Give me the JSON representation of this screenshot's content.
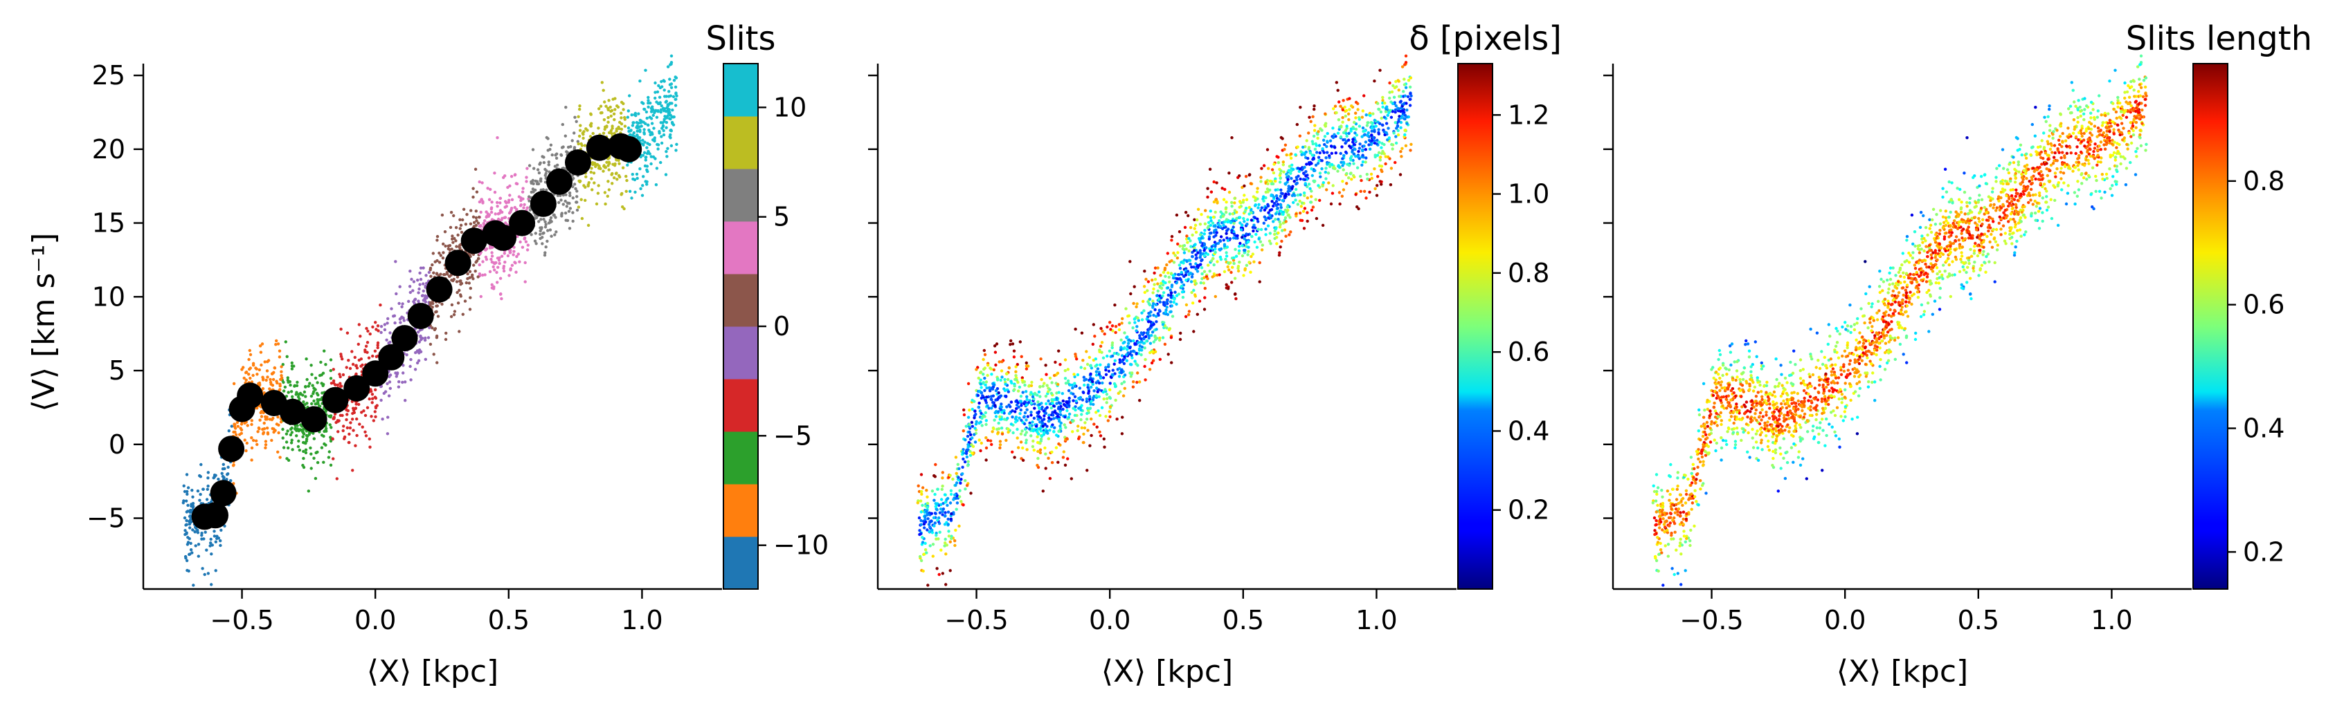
{
  "chart_data": [
    {
      "type": "scatter",
      "xlabel": "⟨X⟩ [kpc]",
      "ylabel": "⟨V⟩ [km s⁻¹]",
      "xlim": [
        -0.87,
        1.3
      ],
      "ylim": [
        -9.8,
        25.8
      ],
      "xticks": [
        -0.5,
        0.0,
        0.5,
        1.0
      ],
      "xtick_labels": [
        "−0.5",
        "0.0",
        "0.5",
        "1.0"
      ],
      "yticks": [
        -5,
        0,
        5,
        10,
        15,
        20,
        25
      ],
      "ytick_labels": [
        "−5",
        "0",
        "5",
        "10",
        "15",
        "20",
        "25"
      ],
      "colorbar": {
        "title": "Slits",
        "range": [
          -12,
          12
        ],
        "ticks": [
          -10,
          -5,
          0,
          5,
          10
        ],
        "tick_labels": [
          "−10",
          "−5",
          "0",
          "5",
          "10"
        ],
        "colors": [
          "#1f77b4",
          "#ff7f0e",
          "#2ca02c",
          "#d62728",
          "#9467bd",
          "#8c564b",
          "#e377c2",
          "#7f7f7f",
          "#bcbd22",
          "#17becf"
        ]
      },
      "mean_points": {
        "color": "#000000",
        "x": [
          -0.64,
          -0.6,
          -0.57,
          -0.54,
          -0.5,
          -0.47,
          -0.38,
          -0.31,
          -0.23,
          -0.15,
          -0.07,
          0.0,
          0.06,
          0.11,
          0.17,
          0.24,
          0.31,
          0.37,
          0.45,
          0.48,
          0.55,
          0.63,
          0.69,
          0.76,
          0.84,
          0.92,
          0.95
        ],
        "y": [
          -4.9,
          -4.8,
          -3.3,
          -0.3,
          2.4,
          3.3,
          2.8,
          2.2,
          1.7,
          3.0,
          3.8,
          4.8,
          5.9,
          7.2,
          8.7,
          10.5,
          12.3,
          13.8,
          14.3,
          14.0,
          15.0,
          16.3,
          17.8,
          19.1,
          20.1,
          20.2,
          20.0
        ]
      }
    },
    {
      "type": "scatter",
      "xlabel": "⟨X⟩ [kpc]",
      "xlim": [
        -0.87,
        1.3
      ],
      "ylim": [
        -9.8,
        25.8
      ],
      "xticks": [
        -0.5,
        0.0,
        0.5,
        1.0
      ],
      "xtick_labels": [
        "−0.5",
        "0.0",
        "0.5",
        "1.0"
      ],
      "colorbar": {
        "title": "δ [pixels]",
        "range": [
          0.0,
          1.33
        ],
        "ticks": [
          0.2,
          0.4,
          0.6,
          0.8,
          1.0,
          1.2
        ],
        "tick_labels": [
          "0.2",
          "0.4",
          "0.6",
          "0.8",
          "1.0",
          "1.2"
        ],
        "colormap": "jet"
      }
    },
    {
      "type": "scatter",
      "xlabel": "⟨X⟩ [kpc]",
      "xlim": [
        -0.87,
        1.3
      ],
      "ylim": [
        -9.8,
        25.8
      ],
      "xticks": [
        -0.5,
        0.0,
        0.5,
        1.0
      ],
      "xtick_labels": [
        "−0.5",
        "0.0",
        "0.5",
        "1.0"
      ],
      "colorbar": {
        "title": "Slits length",
        "range": [
          0.14,
          0.99
        ],
        "ticks": [
          0.2,
          0.4,
          0.6,
          0.8
        ],
        "tick_labels": [
          "0.2",
          "0.4",
          "0.6",
          "0.8"
        ],
        "colormap": "jet"
      }
    }
  ]
}
